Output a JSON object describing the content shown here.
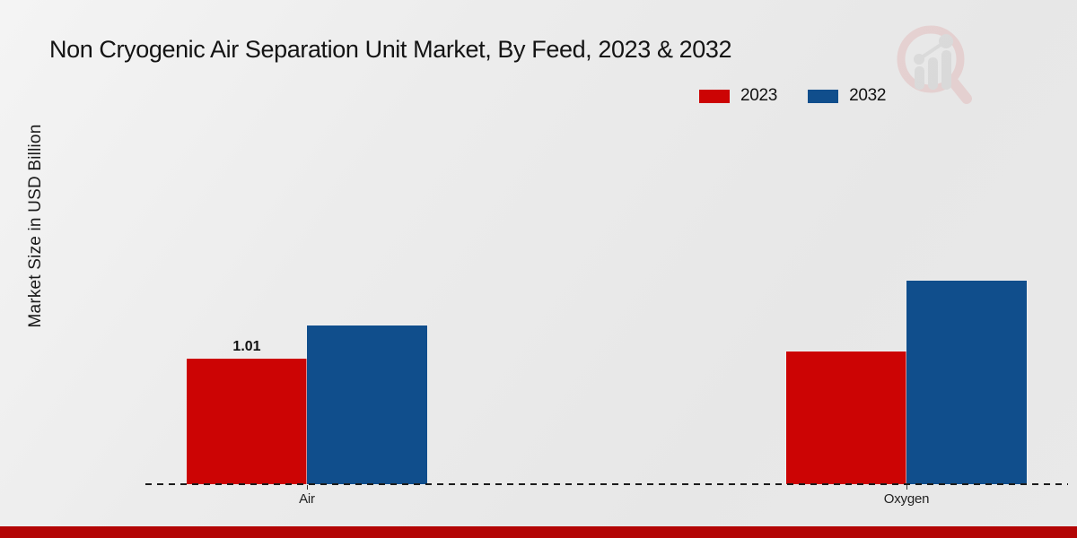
{
  "page": {
    "title": "Non Cryogenic Air Separation Unit Market, By Feed, 2023 & 2032",
    "y_axis_label": "Market Size in USD Billion",
    "footer_color": "#b30505"
  },
  "legend": {
    "position": "top-right",
    "items": [
      {
        "label": "2023",
        "color": "#cc0404"
      },
      {
        "label": "2032",
        "color": "#104e8c"
      }
    ]
  },
  "watermark": {
    "name": "magnifier-bar-chart-logo",
    "glass_color": "#e3bfbf",
    "bars_color": "#cfcfcf"
  },
  "chart_data": {
    "type": "bar",
    "title": "Non Cryogenic Air Separation Unit Market, By Feed, 2023 & 2032",
    "categories": [
      "Air",
      "Oxygen"
    ],
    "series": [
      {
        "name": "2023",
        "color": "#cc0404",
        "values": [
          1.01,
          1.07
        ],
        "data_labels": [
          "1.01",
          ""
        ]
      },
      {
        "name": "2032",
        "color": "#104e8c",
        "values": [
          1.28,
          1.64
        ],
        "data_labels": [
          "",
          ""
        ]
      }
    ],
    "xlabel": "",
    "ylabel": "Market Size in USD Billion",
    "value_unit": "USD Billion",
    "grid": false,
    "y_axis_ticks_visible": false,
    "baseline_style": "dashed",
    "legend_position": "top-right"
  }
}
